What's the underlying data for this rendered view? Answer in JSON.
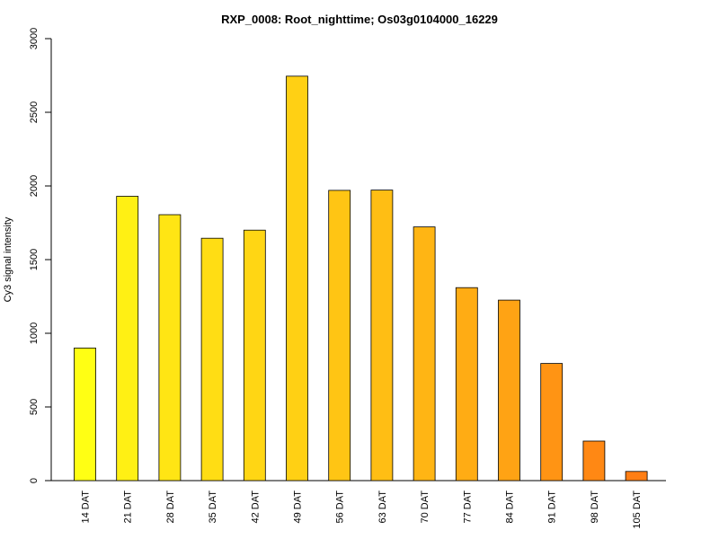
{
  "chart_data": {
    "type": "bar",
    "title": "RXP_0008: Root_nighttime; Os03g0104000_16229",
    "ylabel": "Cy3 signal intensity",
    "xlabel": "",
    "ylim": [
      0,
      3000
    ],
    "yticks": [
      0,
      500,
      1000,
      1500,
      2000,
      2500,
      3000
    ],
    "categories": [
      "14 DAT",
      "21 DAT",
      "28 DAT",
      "35 DAT",
      "42 DAT",
      "49 DAT",
      "56 DAT",
      "63 DAT",
      "70 DAT",
      "77 DAT",
      "84 DAT",
      "91 DAT",
      "98 DAT",
      "105 DAT"
    ],
    "values": [
      900,
      1930,
      1805,
      1645,
      1700,
      2745,
      1970,
      1972,
      1722,
      1310,
      1225,
      795,
      268,
      62
    ],
    "colors": [
      "#FFFF14",
      "#FFF014",
      "#FFE514",
      "#FFDD14",
      "#FFD614",
      "#FFD014",
      "#FFC514",
      "#FFBE14",
      "#FFB514",
      "#FFAC14",
      "#FFA314",
      "#FF9414",
      "#FF8814",
      "#FF7E14"
    ],
    "grid": false,
    "legend": "none"
  }
}
